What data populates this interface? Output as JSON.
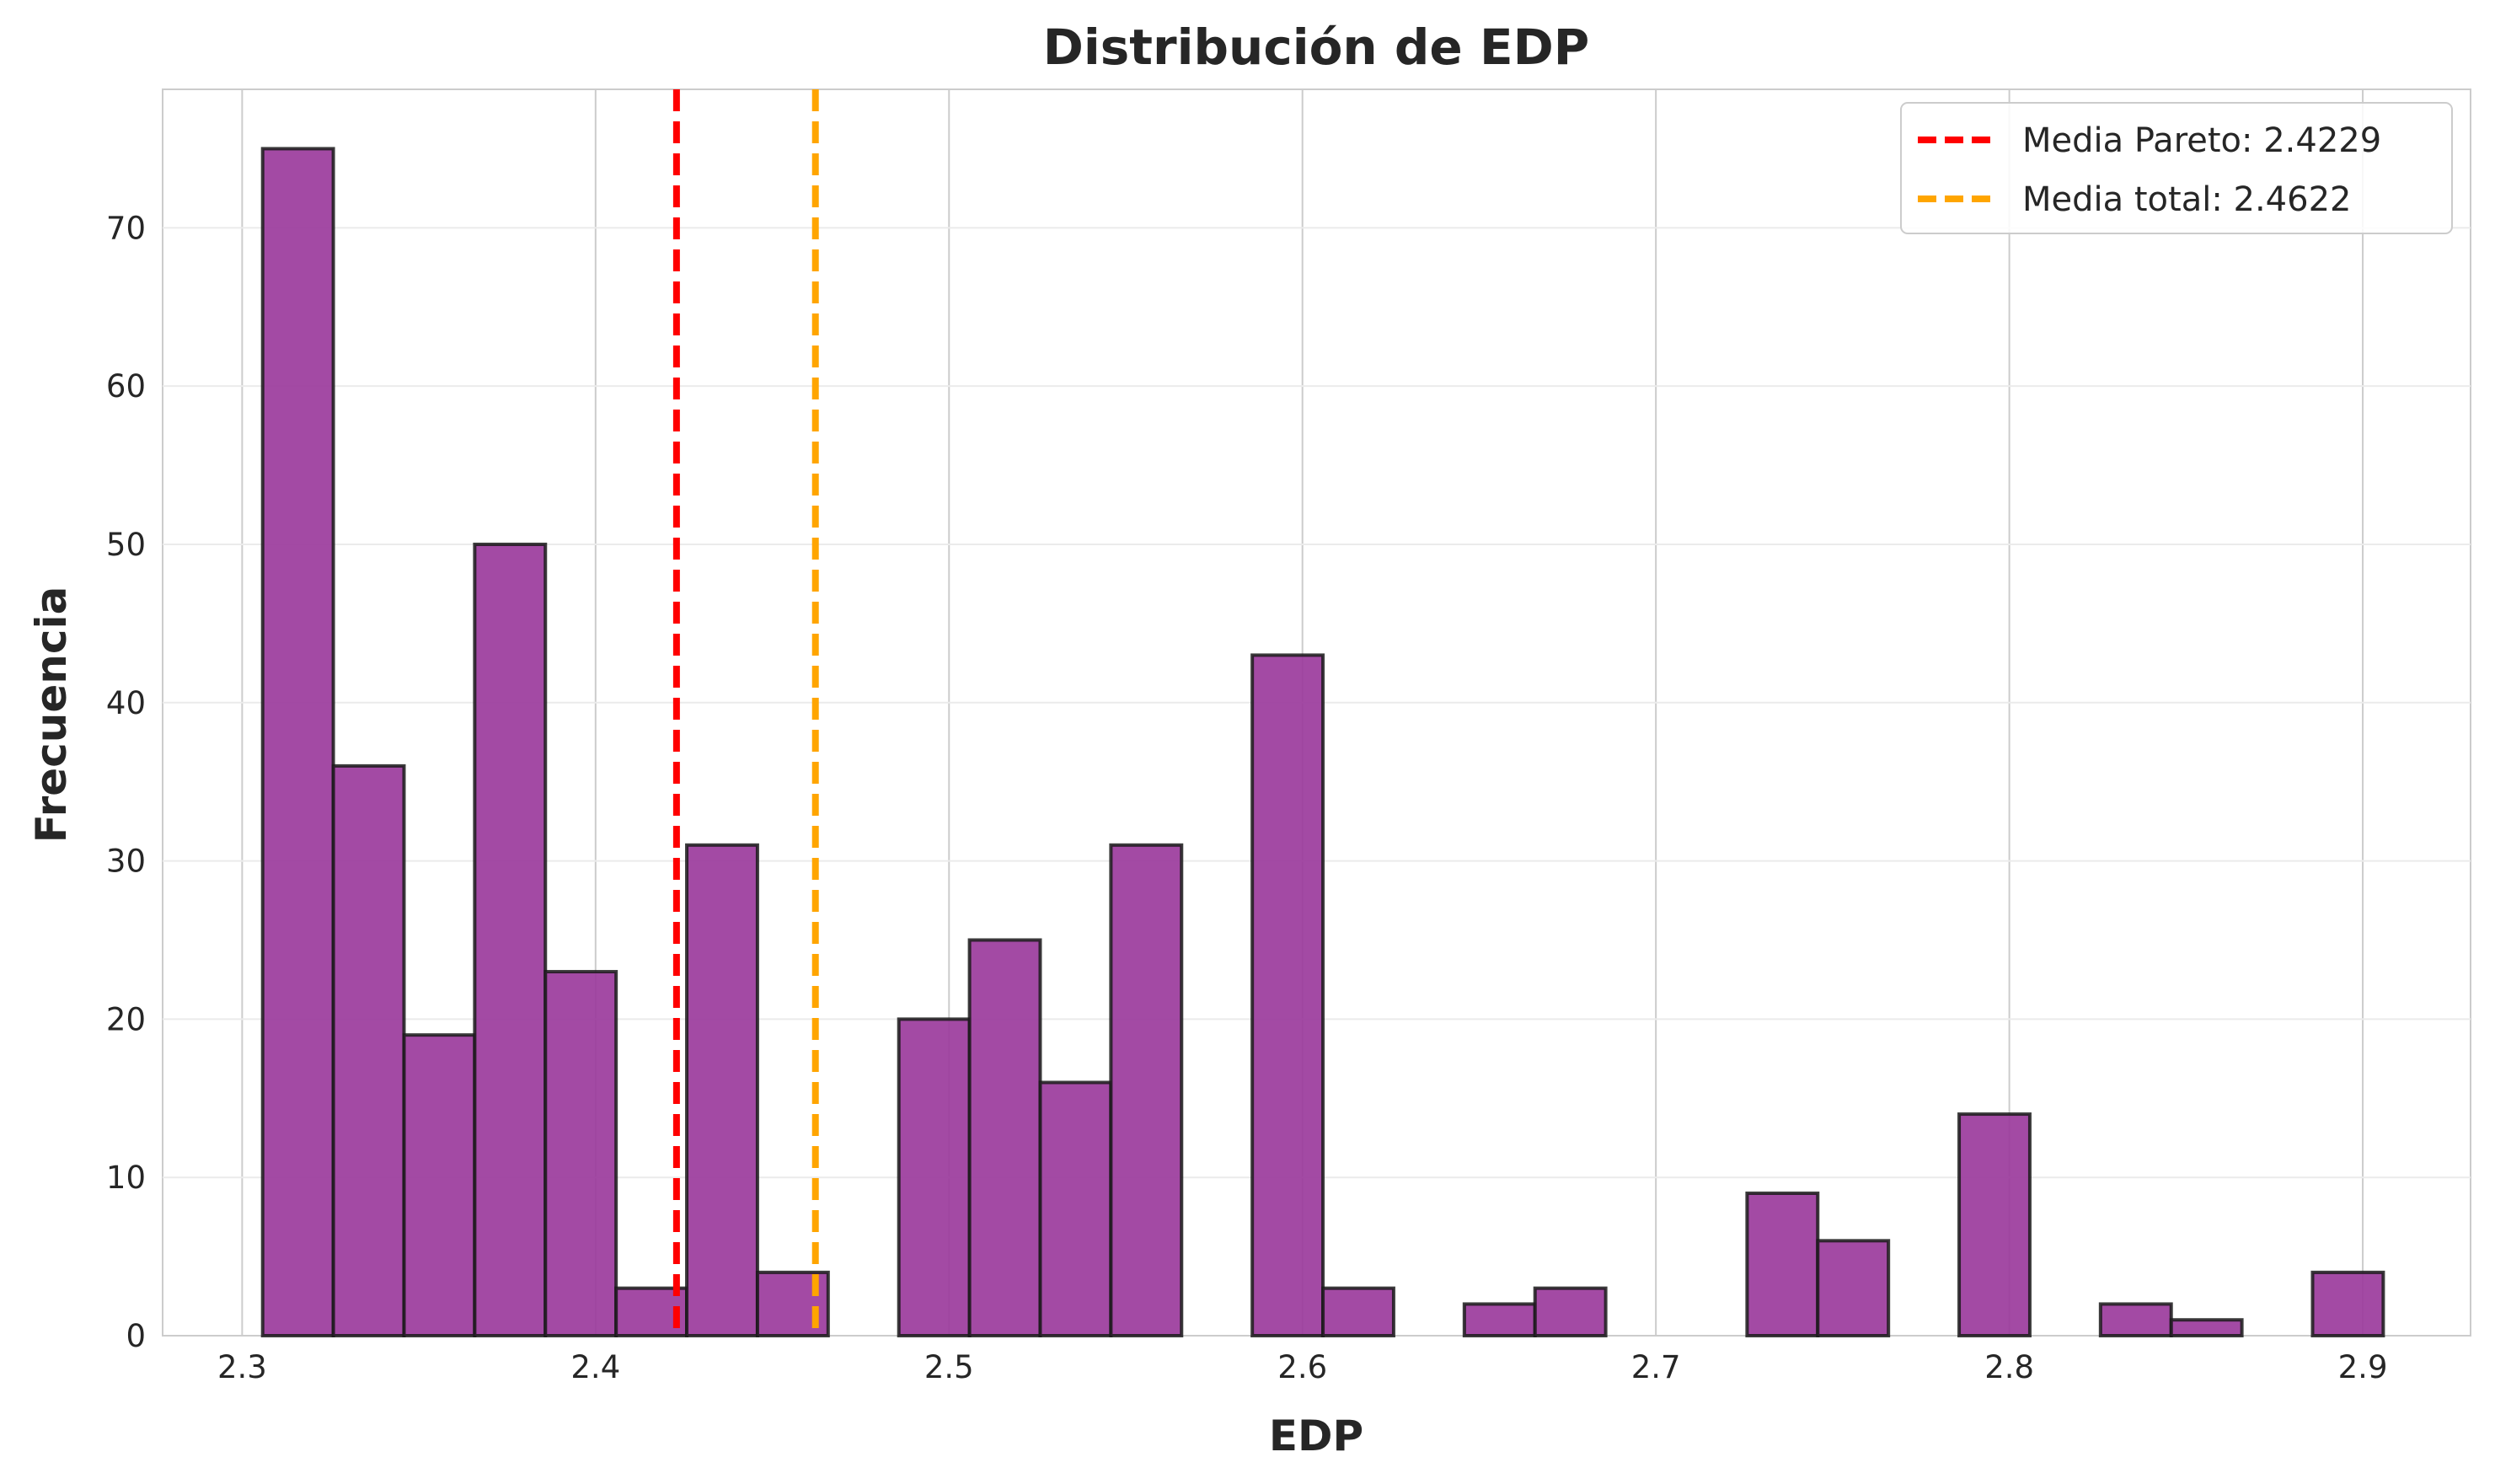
{
  "chart_data": {
    "type": "bar",
    "title": "Distribución de EDP",
    "xlabel": "EDP",
    "ylabel": "Frecuencia",
    "xlim": [
      2.2775,
      2.9305
    ],
    "ylim": [
      0,
      78.75
    ],
    "x_ticks": [
      2.3,
      2.4,
      2.5,
      2.6,
      2.7,
      2.8,
      2.9
    ],
    "x_tick_labels": [
      "2.3",
      "2.4",
      "2.5",
      "2.6",
      "2.7",
      "2.8",
      "2.9"
    ],
    "y_ticks": [
      0,
      10,
      20,
      30,
      40,
      50,
      60,
      70
    ],
    "y_tick_labels": [
      "0",
      "10",
      "20",
      "30",
      "40",
      "50",
      "60",
      "70"
    ],
    "grid": true,
    "bin_start": 2.3058,
    "bin_width": 0.02,
    "values": [
      75,
      36,
      19,
      50,
      23,
      3,
      31,
      4,
      0,
      20,
      25,
      16,
      31,
      0,
      43,
      3,
      0,
      2,
      3,
      0,
      0,
      9,
      6,
      0,
      14,
      0,
      2,
      1,
      0,
      4
    ],
    "bar_color": "#9b3b9c",
    "bar_edge_color": "#1a1a1a",
    "reference_lines": [
      {
        "name": "Media Pareto: 2.4229",
        "x": 2.4229,
        "color": "#ff0000"
      },
      {
        "name": "Media total: 2.4622",
        "x": 2.4622,
        "color": "#ffa500"
      }
    ],
    "legend_position": "top-right"
  }
}
